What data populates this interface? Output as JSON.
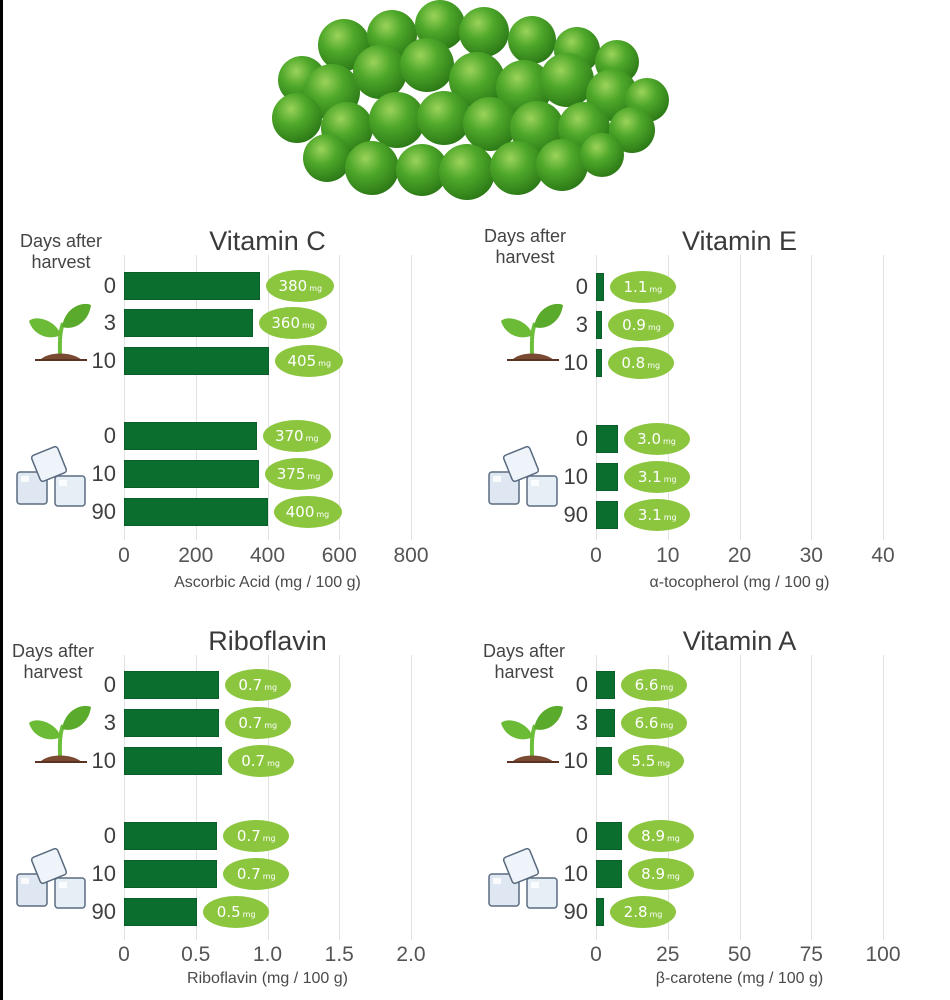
{
  "header": {
    "image": "green-peas-photo"
  },
  "colors": {
    "bar": "#0b6e2f",
    "bubble": "#8cc63f",
    "grid": "#e2e2e2",
    "text": "#404040"
  },
  "groups": {
    "fresh_icon": "seedling-icon",
    "frozen_icon": "ice-cubes-icon"
  },
  "chart_data": [
    {
      "type": "bar",
      "orientation": "horizontal",
      "title": "Vitamin C",
      "ylabel": "Days after harvest",
      "xlabel": "Ascorbic Acid (mg / 100 g)",
      "xlim": [
        0,
        800
      ],
      "ticks": [
        "0",
        "200",
        "400",
        "600",
        "800"
      ],
      "grid": true,
      "unit": "mg",
      "groups": [
        {
          "name": "Fresh",
          "icon": "seedling-icon",
          "categories": [
            "0",
            "3",
            "10"
          ],
          "values": [
            380,
            360,
            405
          ],
          "labels": [
            "380",
            "360",
            "405"
          ]
        },
        {
          "name": "Frozen",
          "icon": "ice-cubes-icon",
          "categories": [
            "0",
            "10",
            "90"
          ],
          "values": [
            370,
            375,
            400
          ],
          "labels": [
            "370",
            "375",
            "400"
          ]
        }
      ]
    },
    {
      "type": "bar",
      "orientation": "horizontal",
      "title": "Vitamin E",
      "ylabel": "Days after harvest",
      "xlabel": "α-tocopherol (mg / 100 g)",
      "xlim": [
        0,
        40
      ],
      "ticks": [
        "0",
        "10",
        "20",
        "30",
        "40"
      ],
      "grid": true,
      "unit": "mg",
      "groups": [
        {
          "name": "Fresh",
          "icon": "seedling-icon",
          "categories": [
            "0",
            "3",
            "10"
          ],
          "values": [
            1.1,
            0.9,
            0.8
          ],
          "labels": [
            "1.1",
            "0.9",
            "0.8"
          ]
        },
        {
          "name": "Frozen",
          "icon": "ice-cubes-icon",
          "categories": [
            "0",
            "10",
            "90"
          ],
          "values": [
            3.0,
            3.1,
            3.1
          ],
          "labels": [
            "3.0",
            "3.1",
            "3.1"
          ]
        }
      ]
    },
    {
      "type": "bar",
      "orientation": "horizontal",
      "title": "Riboflavin",
      "ylabel": "Days after harvest",
      "xlabel": "Riboflavin (mg / 100 g)",
      "xlim": [
        0,
        2.0
      ],
      "ticks": [
        "0",
        "0.5",
        "1.0",
        "1.5",
        "2.0"
      ],
      "grid": true,
      "unit": "mg",
      "groups": [
        {
          "name": "Fresh",
          "icon": "seedling-icon",
          "categories": [
            "0",
            "3",
            "10"
          ],
          "values": [
            0.66,
            0.66,
            0.68
          ],
          "labels": [
            "0.7",
            "0.7",
            "0.7"
          ]
        },
        {
          "name": "Frozen",
          "icon": "ice-cubes-icon",
          "categories": [
            "0",
            "10",
            "90"
          ],
          "values": [
            0.65,
            0.65,
            0.51
          ],
          "labels": [
            "0.7",
            "0.7",
            "0.5"
          ]
        }
      ]
    },
    {
      "type": "bar",
      "orientation": "horizontal",
      "title": "Vitamin A",
      "ylabel": "Days after harvest",
      "xlabel": "β-carotene (mg / 100 g)",
      "xlim": [
        0,
        100
      ],
      "ticks": [
        "0",
        "25",
        "50",
        "75",
        "100"
      ],
      "grid": true,
      "unit": "mg",
      "groups": [
        {
          "name": "Fresh",
          "icon": "seedling-icon",
          "categories": [
            "0",
            "3",
            "10"
          ],
          "values": [
            6.6,
            6.6,
            5.5
          ],
          "labels": [
            "6.6",
            "6.6",
            "5.5"
          ]
        },
        {
          "name": "Frozen",
          "icon": "ice-cubes-icon",
          "categories": [
            "0",
            "10",
            "90"
          ],
          "values": [
            8.9,
            8.9,
            2.8
          ],
          "labels": [
            "8.9",
            "8.9",
            "2.8"
          ]
        }
      ]
    }
  ]
}
